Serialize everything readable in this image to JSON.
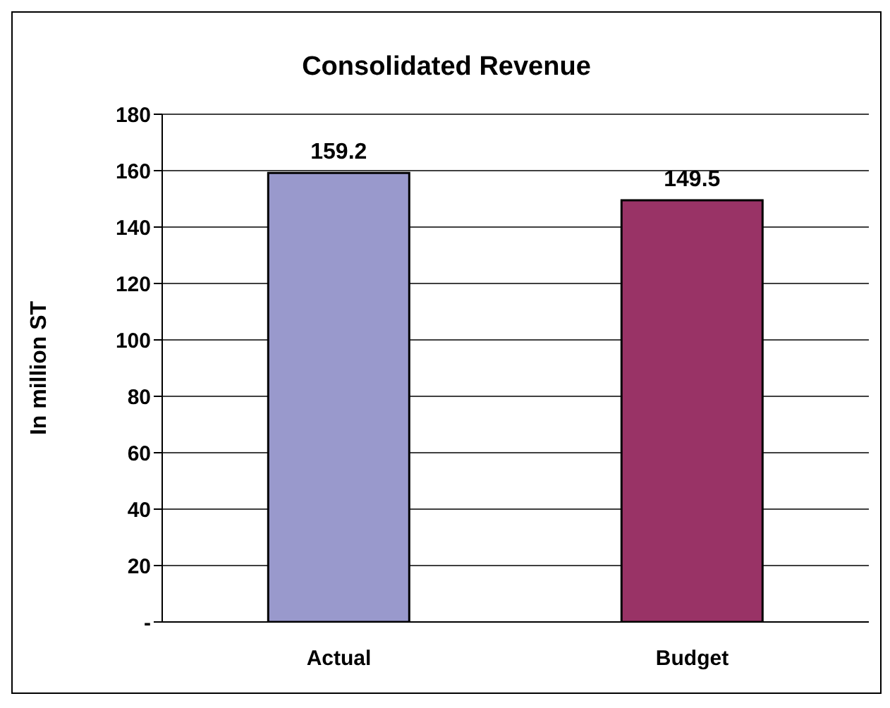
{
  "chart_data": {
    "type": "bar",
    "title": "Consolidated Revenue",
    "ylabel": "In million ST",
    "categories": [
      "Actual",
      "Budget"
    ],
    "values": [
      159.2,
      149.5
    ],
    "colors": [
      "#9999cc",
      "#993366"
    ],
    "ylim": [
      0,
      180
    ],
    "yticks": [
      {
        "value": 0,
        "label": "-"
      },
      20,
      40,
      60,
      80,
      100,
      120,
      140,
      160,
      180
    ],
    "grid": "y",
    "data_labels": true
  }
}
